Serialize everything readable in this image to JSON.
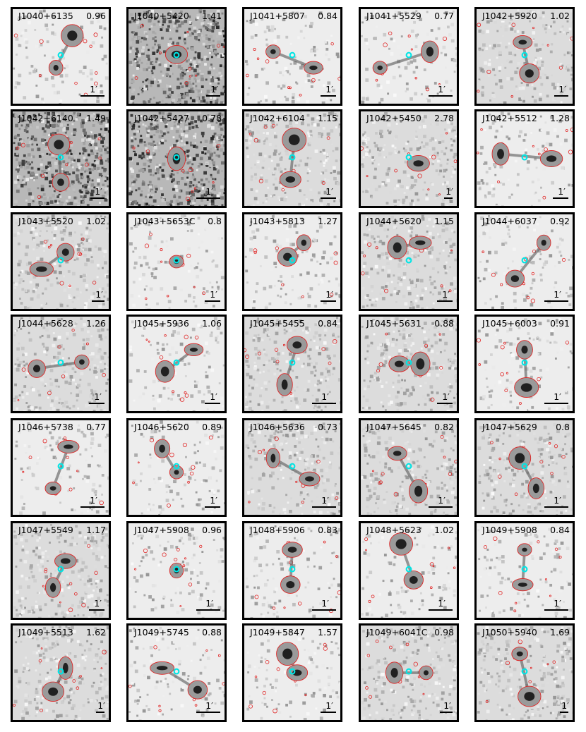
{
  "scale_label": "1′",
  "colors": {
    "contour": "#e02020",
    "core": "#00e5e5",
    "frame": "#000000"
  },
  "panels": [
    {
      "name": "J1040+6135",
      "z": "0.96",
      "noise": "low"
    },
    {
      "name": "J1040+5420",
      "z": "1.41",
      "noise": "high"
    },
    {
      "name": "J1041+5807",
      "z": "0.84",
      "noise": "low"
    },
    {
      "name": "J1041+5529",
      "z": "0.77",
      "noise": "low"
    },
    {
      "name": "J1042+5920",
      "z": "1.02",
      "noise": "med"
    },
    {
      "name": "J1042+6140",
      "z": "1.49",
      "noise": "high"
    },
    {
      "name": "J1042+5427",
      "z": "0.78",
      "noise": "high"
    },
    {
      "name": "J1042+6104",
      "z": "1.15",
      "noise": "med"
    },
    {
      "name": "J1042+5450",
      "z": "2.78",
      "noise": "med"
    },
    {
      "name": "J1042+5512",
      "z": "1.28",
      "noise": "low"
    },
    {
      "name": "J1043+5520",
      "z": "1.02",
      "noise": "med"
    },
    {
      "name": "J1043+5653C",
      "z": "0.8",
      "noise": "low"
    },
    {
      "name": "J1043+5813",
      "z": "1.27",
      "noise": "low"
    },
    {
      "name": "J1044+5620",
      "z": "1.15",
      "noise": "med"
    },
    {
      "name": "J1044+6037",
      "z": "0.92",
      "noise": "low"
    },
    {
      "name": "J1044+5628",
      "z": "1.26",
      "noise": "med"
    },
    {
      "name": "J1045+5936",
      "z": "1.06",
      "noise": "low"
    },
    {
      "name": "J1045+5455",
      "z": "0.84",
      "noise": "med"
    },
    {
      "name": "J1045+5631",
      "z": "0.88",
      "noise": "med"
    },
    {
      "name": "J1045+6003",
      "z": "0.91",
      "noise": "low"
    },
    {
      "name": "J1046+5738",
      "z": "0.77",
      "noise": "low"
    },
    {
      "name": "J1046+5620",
      "z": "0.89",
      "noise": "low"
    },
    {
      "name": "J1046+5636",
      "z": "0.73",
      "noise": "med"
    },
    {
      "name": "J1047+5645",
      "z": "0.82",
      "noise": "med"
    },
    {
      "name": "J1047+5629",
      "z": "0.8",
      "noise": "med"
    },
    {
      "name": "J1047+5549",
      "z": "1.17",
      "noise": "med"
    },
    {
      "name": "J1047+5908",
      "z": "0.96",
      "noise": "low"
    },
    {
      "name": "J1048+5906",
      "z": "0.83",
      "noise": "low"
    },
    {
      "name": "J1048+5623",
      "z": "1.02",
      "noise": "low"
    },
    {
      "name": "J1049+5908",
      "z": "0.84",
      "noise": "low"
    },
    {
      "name": "J1049+5513",
      "z": "1.62",
      "noise": "med"
    },
    {
      "name": "J1049+5745",
      "z": "0.88",
      "noise": "low"
    },
    {
      "name": "J1049+5847",
      "z": "1.57",
      "noise": "low"
    },
    {
      "name": "J1049+6041C",
      "z": "0.98",
      "noise": "med"
    },
    {
      "name": "J1050+5940",
      "z": "1.69",
      "noise": "med"
    }
  ]
}
